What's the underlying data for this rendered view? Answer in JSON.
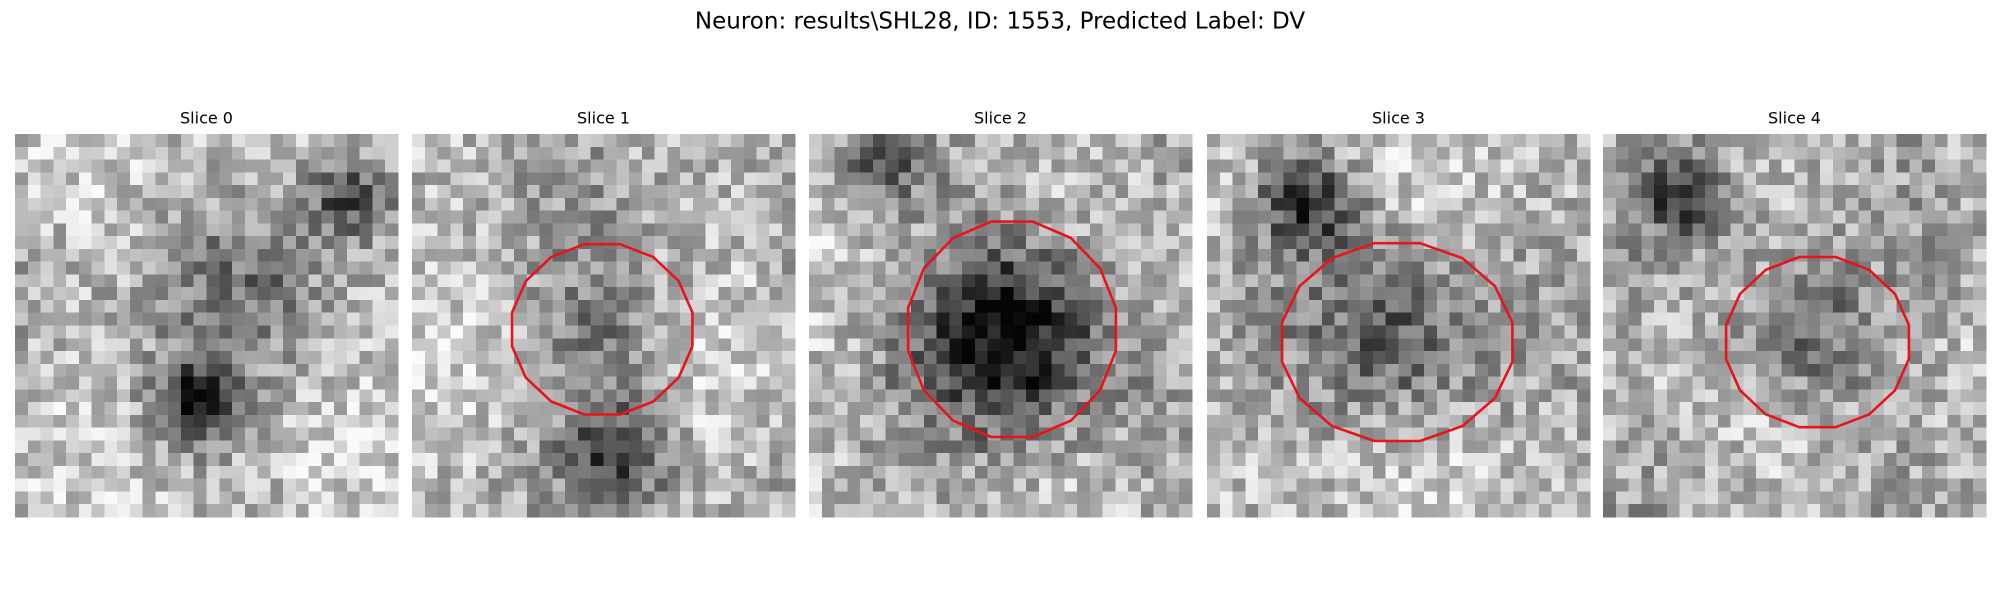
{
  "title": "Neuron: results\\SHL28, ID: 1553, Predicted Label: DV",
  "panels": [
    {
      "title": "Slice 0"
    },
    {
      "title": "Slice 1"
    },
    {
      "title": "Slice 2"
    },
    {
      "title": "Slice 3"
    },
    {
      "title": "Slice 4"
    }
  ]
}
